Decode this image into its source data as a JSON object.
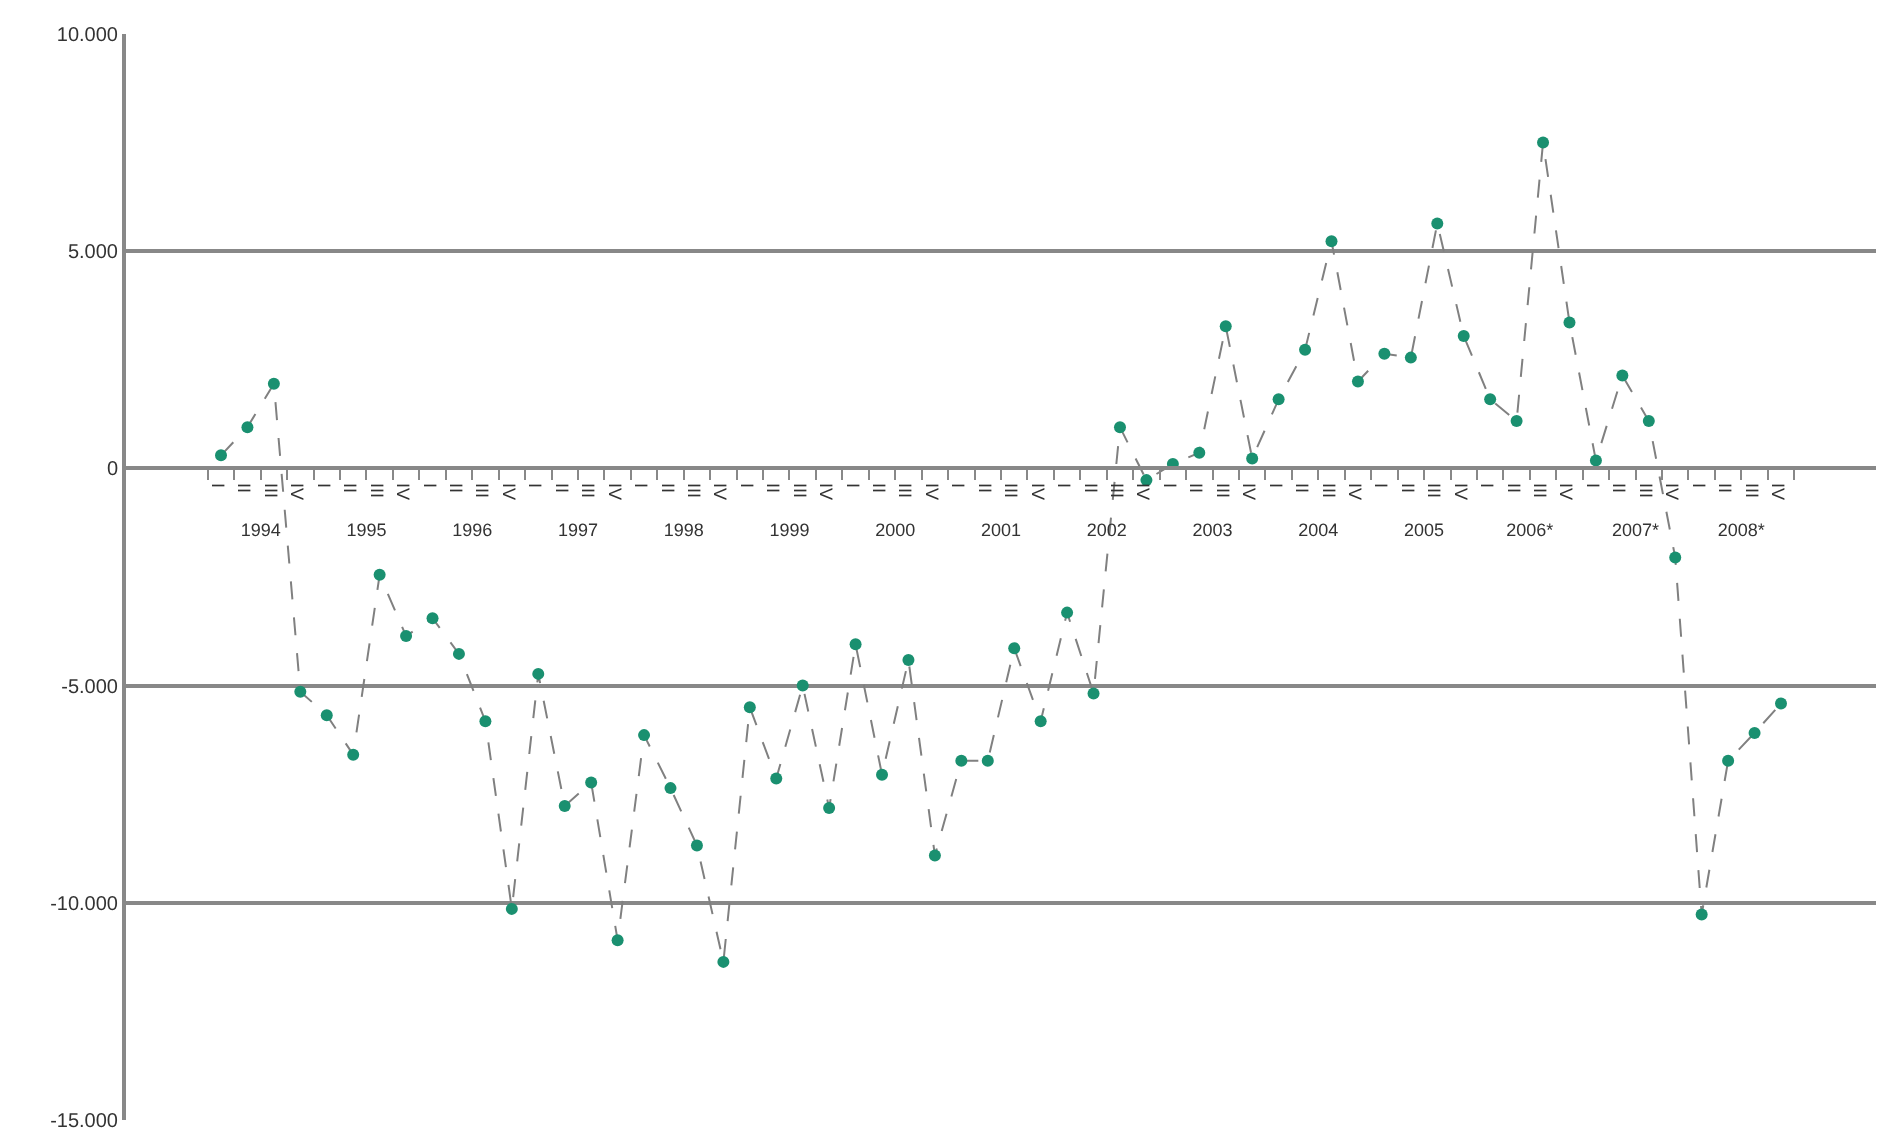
{
  "chart_data": {
    "type": "line",
    "categories": [
      "I",
      "II",
      "III",
      "IV",
      "I",
      "II",
      "III",
      "IV",
      "I",
      "II",
      "III",
      "IV",
      "I",
      "II",
      "III",
      "IV",
      "I",
      "II",
      "III",
      "IV",
      "I",
      "II",
      "III",
      "IV",
      "I",
      "II",
      "III",
      "IV",
      "I",
      "II",
      "III",
      "IV",
      "I",
      "II",
      "III",
      "IV",
      "I",
      "II",
      "III",
      "IV",
      "I",
      "II",
      "III",
      "IV",
      "I",
      "II",
      "III",
      "IV",
      "I",
      "II",
      "III",
      "IV",
      "I",
      "II",
      "III",
      "IV",
      "I",
      "II",
      "III",
      "IV"
    ],
    "annotations": [
      "1994",
      "1995",
      "1996",
      "1997",
      "1998",
      "1999",
      "2000",
      "2001",
      "2002",
      "2003",
      "2004",
      "2005",
      "2006*",
      "2007*",
      "2008*"
    ],
    "series": [
      {
        "color": "#1a9070",
        "values": [
          300,
          950,
          1950,
          -5140,
          -5680,
          -6590,
          -2450,
          -3860,
          -3450,
          -4270,
          -5820,
          -10140,
          -4730,
          -7770,
          -7230,
          -10860,
          -6140,
          -7360,
          -8680,
          -11360,
          -5500,
          -7140,
          -5000,
          -7820,
          -4050,
          -7050,
          -4410,
          -8910,
          -6730,
          -6730,
          -4140,
          -5820,
          -3320,
          -5180,
          950,
          -270,
          100,
          360,
          3270,
          230,
          1590,
          2730,
          5230,
          2000,
          2640,
          2550,
          5640,
          3050,
          1590,
          1090,
          7500,
          3360,
          180,
          2140,
          1090,
          -2050,
          -10270,
          -6730,
          -6090,
          -5410
        ]
      }
    ],
    "ylim": [
      -15000,
      10000
    ],
    "yticks": [
      {
        "value": -15000,
        "label": "-15.000"
      },
      {
        "value": -10000,
        "label": "-10.000"
      },
      {
        "value": -5000,
        "label": "-5.000"
      },
      0,
      {
        "value": 5000,
        "label": "5.000"
      },
      {
        "value": 10000,
        "label": "10.000"
      }
    ],
    "grid": "y",
    "marker": "circle",
    "line_style": "dashed",
    "legend": false
  }
}
